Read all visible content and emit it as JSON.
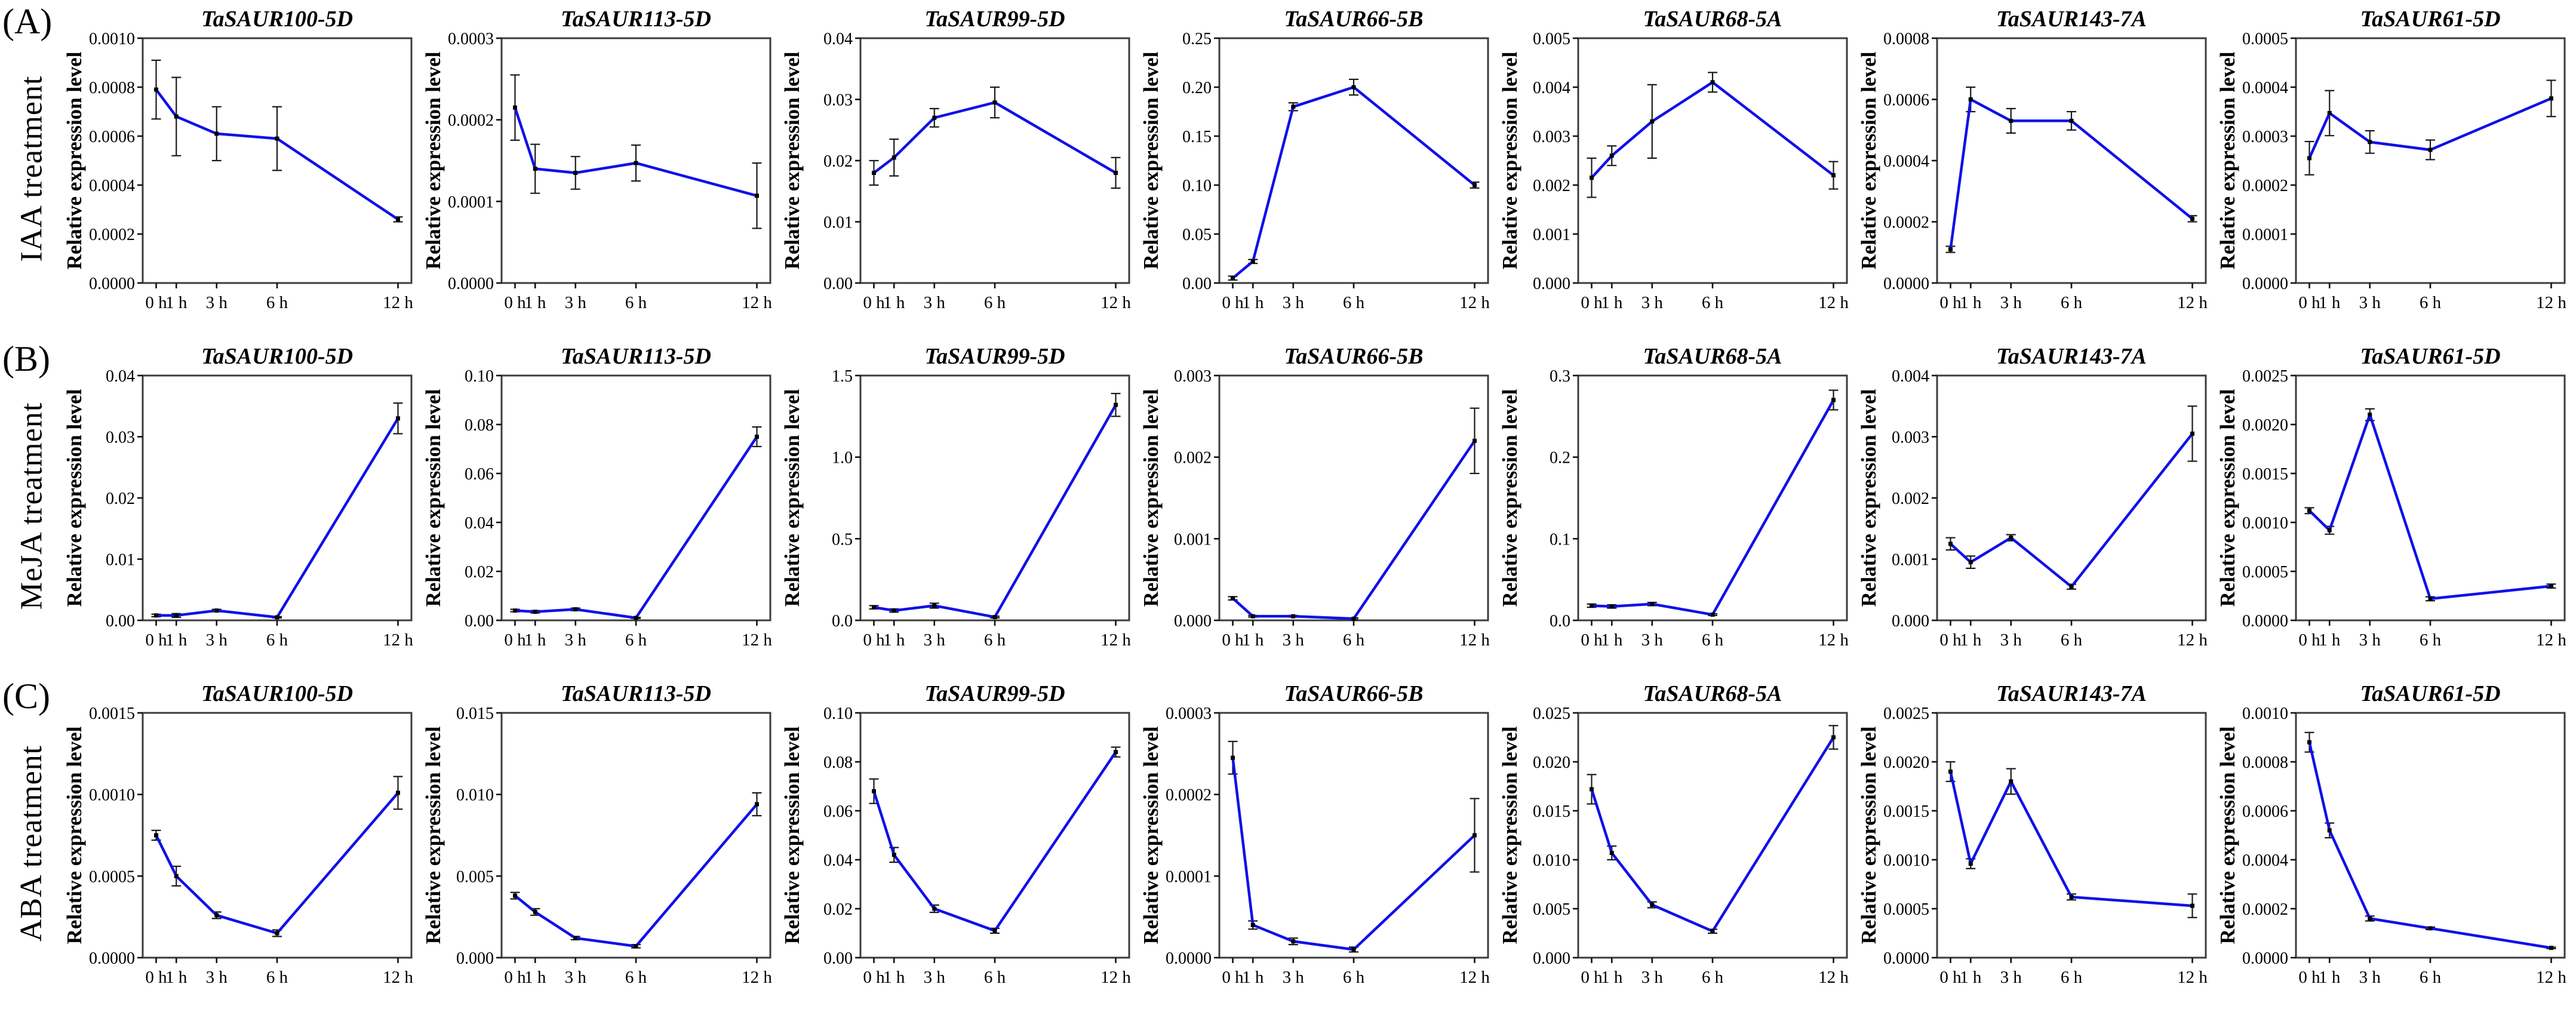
{
  "figure": {
    "ylabel": "Relative expression level",
    "x_categories": [
      "0 h",
      "1 h",
      "3 h",
      "6 h",
      "12 h"
    ],
    "x_hours": [
      0,
      1,
      3,
      6,
      12
    ],
    "colors": {
      "line": "#1010e8",
      "marker": "#000000",
      "error": "#1a1a1a",
      "axis_box": "#3c3c3c",
      "tick": "#111111",
      "text": "#000000",
      "background": "#ffffff"
    },
    "panels": [
      {
        "id": "A",
        "label": "(A)",
        "treatment": "IAA treatment"
      },
      {
        "id": "B",
        "label": "(B)",
        "treatment": "MeJA treatment"
      },
      {
        "id": "C",
        "label": "(C)",
        "treatment": "ABA treatment"
      }
    ]
  },
  "chart_data": [
    {
      "type": "line",
      "panel": "A",
      "title": "TaSAUR100-5D",
      "ylabel": "Relative expression level",
      "x_categories": [
        "0 h",
        "1 h",
        "3 h",
        "6 h",
        "12 h"
      ],
      "x": [
        0,
        1,
        3,
        6,
        12
      ],
      "values": [
        0.00079,
        0.00068,
        0.00061,
        0.00059,
        0.00026
      ],
      "errors": [
        0.00012,
        0.00016,
        0.00011,
        0.00013,
        1e-05
      ],
      "ylim": [
        0,
        0.001
      ],
      "yticks": [
        0.0,
        0.0002,
        0.0004,
        0.0006,
        0.0008,
        0.001
      ],
      "ytick_decimals": 4
    },
    {
      "type": "line",
      "panel": "A",
      "title": "TaSAUR113-5D",
      "ylabel": "Relative expression level",
      "x_categories": [
        "0 h",
        "1 h",
        "3 h",
        "6 h",
        "12 h"
      ],
      "x": [
        0,
        1,
        3,
        6,
        12
      ],
      "values": [
        0.000215,
        0.00014,
        0.000135,
        0.000147,
        0.000107
      ],
      "errors": [
        4e-05,
        3e-05,
        2e-05,
        2.2e-05,
        4e-05
      ],
      "ylim": [
        0,
        0.0003
      ],
      "yticks": [
        0.0,
        0.0001,
        0.0002,
        0.0003
      ],
      "ytick_decimals": 4
    },
    {
      "type": "line",
      "panel": "A",
      "title": "TaSAUR99-5D",
      "ylabel": "Relative expression level",
      "x_categories": [
        "0 h",
        "1 h",
        "3 h",
        "6 h",
        "12 h"
      ],
      "x": [
        0,
        1,
        3,
        6,
        12
      ],
      "values": [
        0.018,
        0.0205,
        0.027,
        0.0295,
        0.018
      ],
      "errors": [
        0.002,
        0.003,
        0.0015,
        0.0025,
        0.0025
      ],
      "ylim": [
        0,
        0.04
      ],
      "yticks": [
        0.0,
        0.01,
        0.02,
        0.03,
        0.04
      ],
      "ytick_decimals": 2
    },
    {
      "type": "line",
      "panel": "A",
      "title": "TaSAUR66-5B",
      "ylabel": "Relative expression level",
      "x_categories": [
        "0 h",
        "1 h",
        "3 h",
        "6 h",
        "12 h"
      ],
      "x": [
        0,
        1,
        3,
        6,
        12
      ],
      "values": [
        0.005,
        0.022,
        0.18,
        0.2,
        0.1
      ],
      "errors": [
        0.002,
        0.002,
        0.004,
        0.008,
        0.003
      ],
      "ylim": [
        0,
        0.25
      ],
      "yticks": [
        0.0,
        0.05,
        0.1,
        0.15,
        0.2,
        0.25
      ],
      "ytick_decimals": 2
    },
    {
      "type": "line",
      "panel": "A",
      "title": "TaSAUR68-5A",
      "ylabel": "Relative expression level",
      "x_categories": [
        "0 h",
        "1 h",
        "3 h",
        "6 h",
        "12 h"
      ],
      "x": [
        0,
        1,
        3,
        6,
        12
      ],
      "values": [
        0.00215,
        0.0026,
        0.0033,
        0.0041,
        0.0022
      ],
      "errors": [
        0.0004,
        0.0002,
        0.00075,
        0.0002,
        0.00028
      ],
      "ylim": [
        0,
        0.005
      ],
      "yticks": [
        0.0,
        0.001,
        0.002,
        0.003,
        0.004,
        0.005
      ],
      "ytick_decimals": 3
    },
    {
      "type": "line",
      "panel": "A",
      "title": "TaSAUR143-7A",
      "ylabel": "Relative expression level",
      "x_categories": [
        "0 h",
        "1 h",
        "3 h",
        "6 h",
        "12 h"
      ],
      "x": [
        0,
        1,
        3,
        6,
        12
      ],
      "values": [
        0.00011,
        0.0006,
        0.00053,
        0.00053,
        0.00021
      ],
      "errors": [
        1e-05,
        4e-05,
        4e-05,
        3e-05,
        1e-05
      ],
      "ylim": [
        0,
        0.0008
      ],
      "yticks": [
        0.0,
        0.0002,
        0.0004,
        0.0006,
        0.0008
      ],
      "ytick_decimals": 4
    },
    {
      "type": "line",
      "panel": "A",
      "title": "TaSAUR61-5D",
      "ylabel": "Relative expression level",
      "x_categories": [
        "0 h",
        "1 h",
        "3 h",
        "6 h",
        "12 h"
      ],
      "x": [
        0,
        1,
        3,
        6,
        12
      ],
      "values": [
        0.000255,
        0.000347,
        0.000288,
        0.000272,
        0.000377
      ],
      "errors": [
        3.4e-05,
        4.6e-05,
        2.3e-05,
        2e-05,
        3.7e-05
      ],
      "ylim": [
        0,
        0.0005
      ],
      "yticks": [
        0.0,
        0.0001,
        0.0002,
        0.0003,
        0.0004,
        0.0005
      ],
      "ytick_decimals": 4
    },
    {
      "type": "line",
      "panel": "B",
      "title": "TaSAUR100-5D",
      "ylabel": "Relative expression level",
      "x_categories": [
        "0 h",
        "1 h",
        "3 h",
        "6 h",
        "12 h"
      ],
      "x": [
        0,
        1,
        3,
        6,
        12
      ],
      "values": [
        0.0008,
        0.0008,
        0.0016,
        0.0005,
        0.033
      ],
      "errors": [
        0.0002,
        0.0003,
        0.0002,
        0.0001,
        0.0025
      ],
      "ylim": [
        0,
        0.04
      ],
      "yticks": [
        0.0,
        0.01,
        0.02,
        0.03,
        0.04
      ],
      "ytick_decimals": 2
    },
    {
      "type": "line",
      "panel": "B",
      "title": "TaSAUR113-5D",
      "ylabel": "Relative expression level",
      "x_categories": [
        "0 h",
        "1 h",
        "3 h",
        "6 h",
        "12 h"
      ],
      "x": [
        0,
        1,
        3,
        6,
        12
      ],
      "values": [
        0.004,
        0.0035,
        0.0045,
        0.001,
        0.075
      ],
      "errors": [
        0.0005,
        0.0005,
        0.0005,
        0.0002,
        0.004
      ],
      "ylim": [
        0,
        0.1
      ],
      "yticks": [
        0.0,
        0.02,
        0.04,
        0.06,
        0.08,
        0.1
      ],
      "ytick_decimals": 2
    },
    {
      "type": "line",
      "panel": "B",
      "title": "TaSAUR99-5D",
      "ylabel": "Relative expression level",
      "x_categories": [
        "0 h",
        "1 h",
        "3 h",
        "6 h",
        "12 h"
      ],
      "x": [
        0,
        1,
        3,
        6,
        12
      ],
      "values": [
        0.08,
        0.06,
        0.09,
        0.02,
        1.32
      ],
      "errors": [
        0.01,
        0.01,
        0.015,
        0.005,
        0.07
      ],
      "ylim": [
        0,
        1.5
      ],
      "yticks": [
        0.0,
        0.5,
        1.0,
        1.5
      ],
      "ytick_decimals": 1
    },
    {
      "type": "line",
      "panel": "B",
      "title": "TaSAUR66-5B",
      "ylabel": "Relative expression level",
      "x_categories": [
        "0 h",
        "1 h",
        "3 h",
        "6 h",
        "12 h"
      ],
      "x": [
        0,
        1,
        3,
        6,
        12
      ],
      "values": [
        0.00027,
        5e-05,
        5e-05,
        2e-05,
        0.0022
      ],
      "errors": [
        2e-05,
        1e-05,
        1e-05,
        1e-05,
        0.0004
      ],
      "ylim": [
        0,
        0.003
      ],
      "yticks": [
        0.0,
        0.001,
        0.002,
        0.003
      ],
      "ytick_decimals": 3
    },
    {
      "type": "line",
      "panel": "B",
      "title": "TaSAUR68-5A",
      "ylabel": "Relative expression level",
      "x_categories": [
        "0 h",
        "1 h",
        "3 h",
        "6 h",
        "12 h"
      ],
      "x": [
        0,
        1,
        3,
        6,
        12
      ],
      "values": [
        0.018,
        0.017,
        0.02,
        0.007,
        0.27
      ],
      "errors": [
        0.002,
        0.002,
        0.002,
        0.001,
        0.012
      ],
      "ylim": [
        0,
        0.3
      ],
      "yticks": [
        0.0,
        0.1,
        0.2,
        0.3
      ],
      "ytick_decimals": 1
    },
    {
      "type": "line",
      "panel": "B",
      "title": "TaSAUR143-7A",
      "ylabel": "Relative expression level",
      "x_categories": [
        "0 h",
        "1 h",
        "3 h",
        "6 h",
        "12 h"
      ],
      "x": [
        0,
        1,
        3,
        6,
        12
      ],
      "values": [
        0.00125,
        0.00095,
        0.00135,
        0.00055,
        0.00305
      ],
      "errors": [
        0.0001,
        0.0001,
        5e-05,
        4e-05,
        0.00045
      ],
      "ylim": [
        0,
        0.004
      ],
      "yticks": [
        0.0,
        0.001,
        0.002,
        0.003,
        0.004
      ],
      "ytick_decimals": 3
    },
    {
      "type": "line",
      "panel": "B",
      "title": "TaSAUR61-5D",
      "ylabel": "Relative expression level",
      "x_categories": [
        "0 h",
        "1 h",
        "3 h",
        "6 h",
        "12 h"
      ],
      "x": [
        0,
        1,
        3,
        6,
        12
      ],
      "values": [
        0.00112,
        0.00092,
        0.0021,
        0.00022,
        0.00035
      ],
      "errors": [
        3e-05,
        4e-05,
        6e-05,
        2e-05,
        2e-05
      ],
      "ylim": [
        0,
        0.0025
      ],
      "yticks": [
        0.0,
        0.0005,
        0.001,
        0.0015,
        0.002,
        0.0025
      ],
      "ytick_decimals": 4
    },
    {
      "type": "line",
      "panel": "C",
      "title": "TaSAUR100-5D",
      "ylabel": "Relative expression level",
      "x_categories": [
        "0 h",
        "1 h",
        "3 h",
        "6 h",
        "12 h"
      ],
      "x": [
        0,
        1,
        3,
        6,
        12
      ],
      "values": [
        0.00075,
        0.0005,
        0.00026,
        0.00015,
        0.00101
      ],
      "errors": [
        3e-05,
        6e-05,
        2e-05,
        2e-05,
        0.0001
      ],
      "ylim": [
        0,
        0.0015
      ],
      "yticks": [
        0.0,
        0.0005,
        0.001,
        0.0015
      ],
      "ytick_decimals": 4
    },
    {
      "type": "line",
      "panel": "C",
      "title": "TaSAUR113-5D",
      "ylabel": "Relative expression level",
      "x_categories": [
        "0 h",
        "1 h",
        "3 h",
        "6 h",
        "12 h"
      ],
      "x": [
        0,
        1,
        3,
        6,
        12
      ],
      "values": [
        0.0038,
        0.0028,
        0.0012,
        0.0007,
        0.0094
      ],
      "errors": [
        0.0002,
        0.0002,
        0.0001,
        0.0001,
        0.0007
      ],
      "ylim": [
        0,
        0.015
      ],
      "yticks": [
        0.0,
        0.005,
        0.01,
        0.015
      ],
      "ytick_decimals": 3
    },
    {
      "type": "line",
      "panel": "C",
      "title": "TaSAUR99-5D",
      "ylabel": "Relative expression level",
      "x_categories": [
        "0 h",
        "1 h",
        "3 h",
        "6 h",
        "12 h"
      ],
      "x": [
        0,
        1,
        3,
        6,
        12
      ],
      "values": [
        0.068,
        0.042,
        0.02,
        0.011,
        0.084
      ],
      "errors": [
        0.005,
        0.003,
        0.0015,
        0.001,
        0.002
      ],
      "ylim": [
        0,
        0.1
      ],
      "yticks": [
        0.0,
        0.02,
        0.04,
        0.06,
        0.08,
        0.1
      ],
      "ytick_decimals": 2
    },
    {
      "type": "line",
      "panel": "C",
      "title": "TaSAUR66-5B",
      "ylabel": "Relative expression level",
      "x_categories": [
        "0 h",
        "1 h",
        "3 h",
        "6 h",
        "12 h"
      ],
      "x": [
        0,
        1,
        3,
        6,
        12
      ],
      "values": [
        0.000245,
        4e-05,
        2e-05,
        1e-05,
        0.00015
      ],
      "errors": [
        2e-05,
        5e-06,
        4e-06,
        3e-06,
        4.5e-05
      ],
      "ylim": [
        0,
        0.0003
      ],
      "yticks": [
        0.0,
        0.0001,
        0.0002,
        0.0003
      ],
      "ytick_decimals": 4
    },
    {
      "type": "line",
      "panel": "C",
      "title": "TaSAUR68-5A",
      "ylabel": "Relative expression level",
      "x_categories": [
        "0 h",
        "1 h",
        "3 h",
        "6 h",
        "12 h"
      ],
      "x": [
        0,
        1,
        3,
        6,
        12
      ],
      "values": [
        0.0172,
        0.0107,
        0.0054,
        0.0027,
        0.0225
      ],
      "errors": [
        0.0015,
        0.0007,
        0.0003,
        0.0002,
        0.0012
      ],
      "ylim": [
        0,
        0.025
      ],
      "yticks": [
        0.0,
        0.005,
        0.01,
        0.015,
        0.02,
        0.025
      ],
      "ytick_decimals": 3
    },
    {
      "type": "line",
      "panel": "C",
      "title": "TaSAUR143-7A",
      "ylabel": "Relative expression level",
      "x_categories": [
        "0 h",
        "1 h",
        "3 h",
        "6 h",
        "12 h"
      ],
      "x": [
        0,
        1,
        3,
        6,
        12
      ],
      "values": [
        0.0019,
        0.00096,
        0.0018,
        0.00062,
        0.00053
      ],
      "errors": [
        0.0001,
        5e-05,
        0.00013,
        3e-05,
        0.00012
      ],
      "ylim": [
        0,
        0.0025
      ],
      "yticks": [
        0.0,
        0.0005,
        0.001,
        0.0015,
        0.002,
        0.0025
      ],
      "ytick_decimals": 4
    },
    {
      "type": "line",
      "panel": "C",
      "title": "TaSAUR61-5D",
      "ylabel": "Relative expression level",
      "x_categories": [
        "0 h",
        "1 h",
        "3 h",
        "6 h",
        "12 h"
      ],
      "x": [
        0,
        1,
        3,
        6,
        12
      ],
      "values": [
        0.00088,
        0.00052,
        0.00016,
        0.00012,
        4e-05
      ],
      "errors": [
        4e-05,
        3e-05,
        1e-05,
        5e-06,
        3e-06
      ],
      "ylim": [
        0,
        0.001
      ],
      "yticks": [
        0.0,
        0.0002,
        0.0004,
        0.0006,
        0.0008,
        0.001
      ],
      "ytick_decimals": 4
    }
  ]
}
